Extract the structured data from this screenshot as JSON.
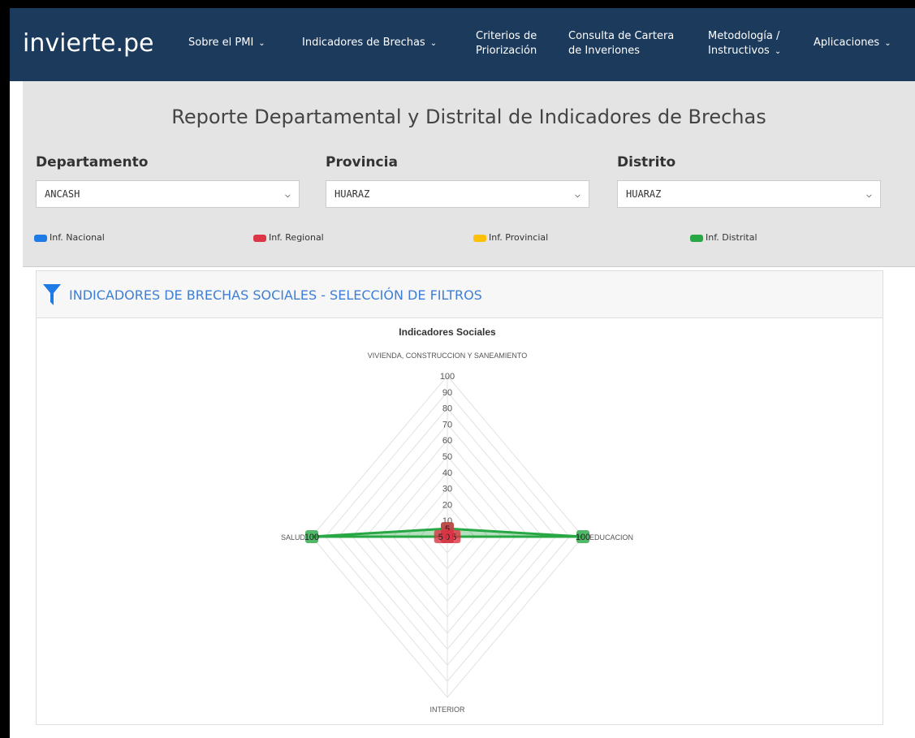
{
  "nav": {
    "logo": "invierte.pe",
    "items": [
      {
        "lines": [
          "Sobre el PMI"
        ]
      },
      {
        "lines": [
          "Indicadores de Brechas"
        ]
      },
      {
        "lines": [
          "Criterios de",
          "Priorización"
        ]
      },
      {
        "lines": [
          "Consulta de Cartera",
          "de Inveriones"
        ]
      },
      {
        "lines": [
          "Metodología /",
          "Instructivos"
        ]
      },
      {
        "lines": [
          "Aplicaciones"
        ]
      }
    ]
  },
  "report": {
    "title": "Reporte Departamental y Distrital de Indicadores de Brechas",
    "filters": [
      {
        "label": "Departamento",
        "value": "ANCASH"
      },
      {
        "label": "Provincia",
        "value": "HUARAZ"
      },
      {
        "label": "Distrito",
        "value": "HUARAZ"
      }
    ],
    "legend": [
      {
        "name": "Inf. Nacional",
        "color": "#1e7be6"
      },
      {
        "name": "Inf. Regional",
        "color": "#dc3545"
      },
      {
        "name": "Inf. Provincial",
        "color": "#ffc107"
      },
      {
        "name": "Inf. Distrital",
        "color": "#28a745"
      }
    ]
  },
  "card": {
    "title": "INDICADORES DE BRECHAS SOCIALES - SELECCIÓN DE FILTROS"
  },
  "chart_data": {
    "type": "radar",
    "title": "Indicadores Sociales",
    "categories": [
      "VIVIENDA, CONSTRUCCION Y SANEAMIENTO",
      "EDUCACION",
      "INTERIOR",
      "SALUD"
    ],
    "rlim": [
      0,
      100
    ],
    "rticks": [
      0,
      10,
      20,
      30,
      40,
      50,
      60,
      70,
      80,
      90,
      100
    ],
    "grid": true,
    "series": [
      {
        "name": "Inf. Distrital",
        "color": "#28a745",
        "values": [
          5,
          100,
          0,
          100
        ]
      },
      {
        "name": "Inf. Regional",
        "color": "#dc3545",
        "values": [
          5,
          5,
          0,
          5
        ]
      }
    ]
  }
}
